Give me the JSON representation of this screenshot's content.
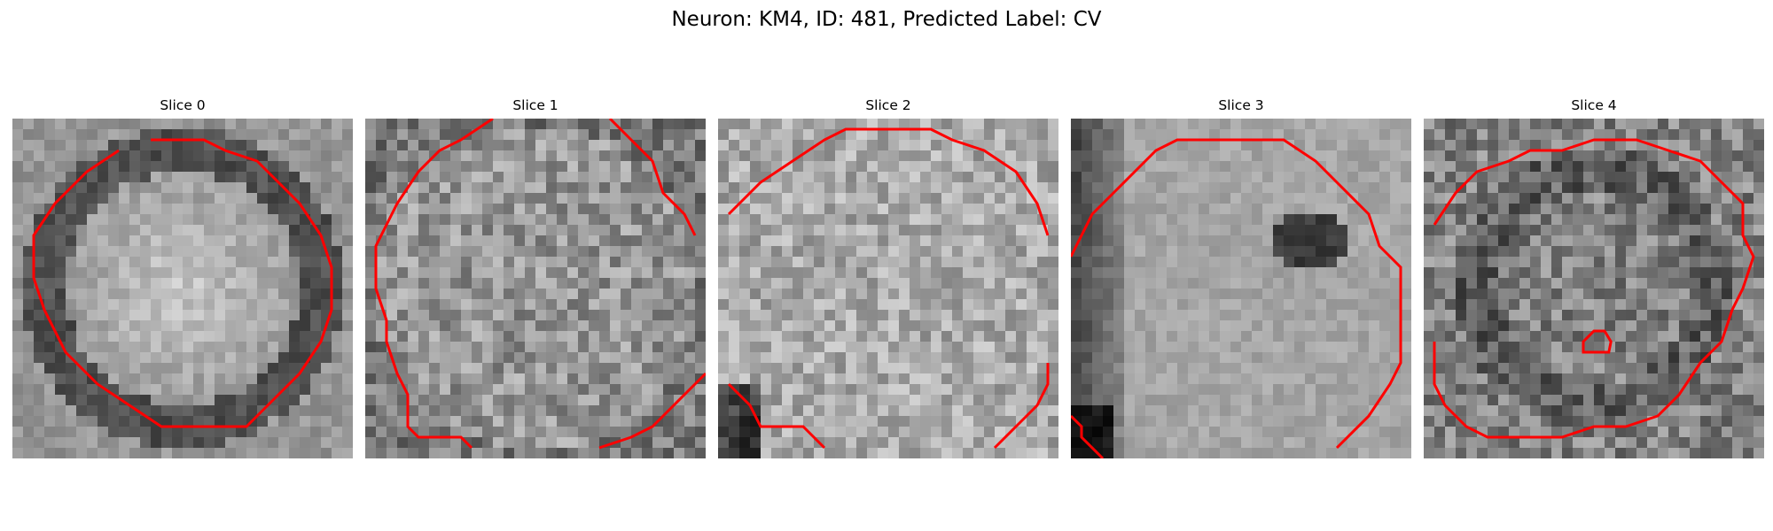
{
  "figure": {
    "title": "Neuron: KM4, ID: 481, Predicted Label: CV",
    "contour_color": "#ff0000",
    "colormap": "gray"
  },
  "panels": [
    {
      "title": "Slice 0",
      "pattern": "soma-bright-dark-ring"
    },
    {
      "title": "Slice 1",
      "pattern": "noisy-uniform"
    },
    {
      "title": "Slice 2",
      "pattern": "noisy-uniform-bright"
    },
    {
      "title": "Slice 3",
      "pattern": "smooth-with-dark-inclusion"
    },
    {
      "title": "Slice 4",
      "pattern": "noisy-dark-with-small-loop"
    }
  ]
}
